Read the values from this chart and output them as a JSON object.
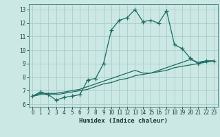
{
  "xlabel": "Humidex (Indice chaleur)",
  "ylabel": "",
  "xlim": [
    -0.5,
    23.5
  ],
  "ylim": [
    5.8,
    13.4
  ],
  "xticks": [
    0,
    1,
    2,
    3,
    4,
    5,
    6,
    7,
    8,
    9,
    10,
    11,
    12,
    13,
    14,
    15,
    16,
    17,
    18,
    19,
    20,
    21,
    22,
    23
  ],
  "yticks": [
    6,
    7,
    8,
    9,
    10,
    11,
    12,
    13
  ],
  "background_color": "#cce8e4",
  "grid_color": "#aaccca",
  "line_color": "#1a6b62",
  "line1_x": [
    0,
    1,
    2,
    3,
    4,
    5,
    6,
    7,
    8,
    9,
    10,
    11,
    12,
    13,
    14,
    15,
    16,
    17,
    18,
    19,
    20,
    21,
    22,
    23
  ],
  "line1_y": [
    6.6,
    6.9,
    6.7,
    6.3,
    6.5,
    6.6,
    6.7,
    7.8,
    7.9,
    9.0,
    11.5,
    12.2,
    12.4,
    13.0,
    12.1,
    12.2,
    12.0,
    12.9,
    10.4,
    10.1,
    9.4,
    9.0,
    9.2,
    9.2
  ],
  "line2_x": [
    0,
    1,
    2,
    3,
    4,
    5,
    6,
    7,
    8,
    9,
    10,
    11,
    12,
    13,
    14,
    15,
    16,
    17,
    18,
    19,
    20,
    21,
    22,
    23
  ],
  "line2_y": [
    6.6,
    6.8,
    6.8,
    6.8,
    6.9,
    7.0,
    7.1,
    7.3,
    7.5,
    7.7,
    7.9,
    8.1,
    8.3,
    8.5,
    8.3,
    8.3,
    8.5,
    8.7,
    8.9,
    9.1,
    9.3,
    9.1,
    9.2,
    9.2
  ],
  "line3_x": [
    0,
    1,
    2,
    3,
    4,
    5,
    6,
    7,
    8,
    9,
    10,
    11,
    12,
    13,
    14,
    15,
    16,
    17,
    18,
    19,
    20,
    21,
    22,
    23
  ],
  "line3_y": [
    6.6,
    6.7,
    6.7,
    6.7,
    6.8,
    6.9,
    7.0,
    7.1,
    7.3,
    7.5,
    7.6,
    7.8,
    7.9,
    8.1,
    8.2,
    8.3,
    8.4,
    8.5,
    8.7,
    8.8,
    8.9,
    9.0,
    9.1,
    9.2
  ]
}
